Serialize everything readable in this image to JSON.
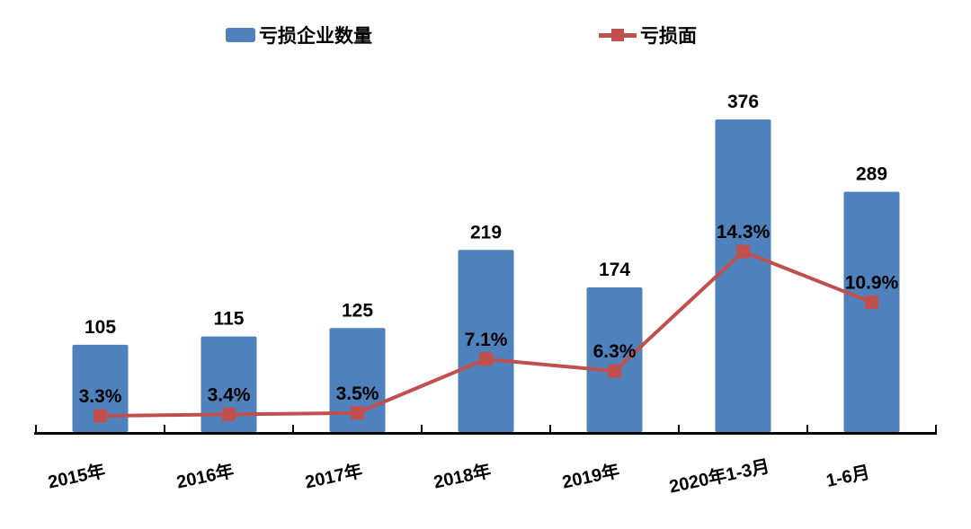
{
  "legend": {
    "bar_label": "亏损企业数量",
    "line_label": "亏损面"
  },
  "colors": {
    "bar": "#4F81BD",
    "line": "#C0504D",
    "label_text": "#000000",
    "axis": "#000000",
    "background": "#FFFFFF"
  },
  "chart_data": {
    "type": "bar",
    "subtype": "bar-line-combo",
    "title": "",
    "xlabel": "",
    "ylabel": "",
    "categories": [
      "2015年",
      "2016年",
      "2017年",
      "2018年",
      "2019年",
      "2020年1-3月",
      "1-6月"
    ],
    "series": [
      {
        "name": "亏损企业数量",
        "type": "bar",
        "values": [
          105,
          115,
          125,
          219,
          174,
          376,
          289
        ],
        "data_labels": [
          "105",
          "115",
          "125",
          "219",
          "174",
          "376",
          "289"
        ],
        "color": "#4F81BD"
      },
      {
        "name": "亏损面",
        "type": "line",
        "values": [
          3.3,
          3.4,
          3.5,
          7.1,
          6.3,
          14.3,
          10.9
        ],
        "data_labels": [
          "3.3%",
          "3.4%",
          "3.5%",
          "7.1%",
          "6.3%",
          "14.3%",
          "10.9%"
        ],
        "color": "#C0504D",
        "marker": "square"
      }
    ],
    "legend_position": "top",
    "grid": false,
    "value_axes_visible": false,
    "bar_axis_range": [
      0,
      420
    ],
    "line_axis_hint": "percent scale, 0% below baseline; markers plotted against secondary axis"
  }
}
